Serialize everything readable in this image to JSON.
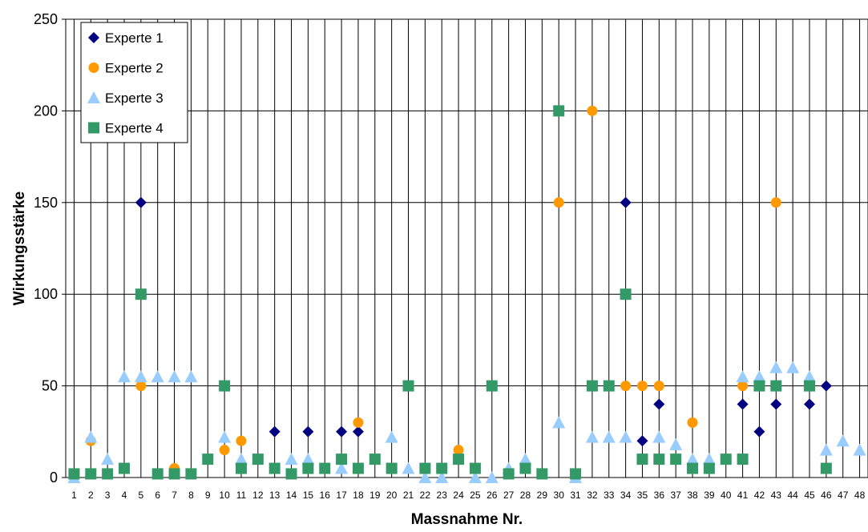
{
  "chart_data": {
    "type": "scatter",
    "xlabel": "Massnahme Nr.",
    "ylabel": "Wirkungsstärke",
    "xlim": [
      0.5,
      48.5
    ],
    "ylim": [
      0,
      250
    ],
    "yticks": [
      0,
      50,
      100,
      150,
      200,
      250
    ],
    "categories": [
      "1",
      "2",
      "3",
      "4",
      "5",
      "6",
      "7",
      "8",
      "9",
      "10",
      "11",
      "12",
      "13",
      "14",
      "15",
      "16",
      "17",
      "18",
      "19",
      "20",
      "21",
      "22",
      "23",
      "24",
      "25",
      "26",
      "27",
      "28",
      "29",
      "30",
      "31",
      "32",
      "33",
      "34",
      "35",
      "36",
      "37",
      "38",
      "39",
      "40",
      "41",
      "42",
      "43",
      "44",
      "45",
      "46",
      "47",
      "48"
    ],
    "grid": "vertical lines at each x, horizontal lines at each y tick",
    "legend_position": "top-left",
    "series": [
      {
        "name": "Experte 1",
        "marker": "diamond",
        "color": "#000080",
        "points": [
          [
            5,
            150
          ],
          [
            13,
            25
          ],
          [
            15,
            25
          ],
          [
            17,
            25
          ],
          [
            18,
            25
          ],
          [
            34,
            150
          ],
          [
            35,
            20
          ],
          [
            36,
            40
          ],
          [
            41,
            40
          ],
          [
            42,
            25
          ],
          [
            43,
            40
          ],
          [
            45,
            40
          ],
          [
            46,
            50
          ]
        ]
      },
      {
        "name": "Experte 2",
        "marker": "circle",
        "color": "#FF9900",
        "points": [
          [
            2,
            20
          ],
          [
            5,
            50
          ],
          [
            7,
            5
          ],
          [
            10,
            15
          ],
          [
            11,
            20
          ],
          [
            18,
            30
          ],
          [
            24,
            15
          ],
          [
            30,
            150
          ],
          [
            32,
            200
          ],
          [
            34,
            50
          ],
          [
            35,
            50
          ],
          [
            36,
            50
          ],
          [
            38,
            30
          ],
          [
            41,
            50
          ],
          [
            43,
            150
          ]
        ]
      },
      {
        "name": "Experte 3",
        "marker": "triangle",
        "color": "#99CCFF",
        "points": [
          [
            1,
            0
          ],
          [
            2,
            22
          ],
          [
            3,
            10
          ],
          [
            4,
            55
          ],
          [
            5,
            55
          ],
          [
            6,
            55
          ],
          [
            7,
            55
          ],
          [
            8,
            55
          ],
          [
            10,
            22
          ],
          [
            11,
            10
          ],
          [
            14,
            10
          ],
          [
            15,
            10
          ],
          [
            17,
            5
          ],
          [
            20,
            22
          ],
          [
            21,
            5
          ],
          [
            22,
            0
          ],
          [
            23,
            0
          ],
          [
            25,
            0
          ],
          [
            26,
            0
          ],
          [
            27,
            5
          ],
          [
            28,
            10
          ],
          [
            30,
            30
          ],
          [
            31,
            0
          ],
          [
            32,
            22
          ],
          [
            33,
            22
          ],
          [
            34,
            22
          ],
          [
            36,
            22
          ],
          [
            37,
            18
          ],
          [
            38,
            10
          ],
          [
            39,
            10
          ],
          [
            41,
            55
          ],
          [
            42,
            55
          ],
          [
            43,
            60
          ],
          [
            44,
            60
          ],
          [
            45,
            55
          ],
          [
            46,
            15
          ],
          [
            47,
            20
          ],
          [
            48,
            15
          ]
        ]
      },
      {
        "name": "Experte 4",
        "marker": "square",
        "color": "#339966",
        "points": [
          [
            1,
            2
          ],
          [
            2,
            2
          ],
          [
            3,
            2
          ],
          [
            4,
            5
          ],
          [
            5,
            100
          ],
          [
            6,
            2
          ],
          [
            7,
            2
          ],
          [
            8,
            2
          ],
          [
            9,
            10
          ],
          [
            10,
            50
          ],
          [
            11,
            5
          ],
          [
            12,
            10
          ],
          [
            13,
            5
          ],
          [
            14,
            2
          ],
          [
            15,
            5
          ],
          [
            16,
            5
          ],
          [
            17,
            10
          ],
          [
            18,
            5
          ],
          [
            19,
            10
          ],
          [
            20,
            5
          ],
          [
            21,
            50
          ],
          [
            22,
            5
          ],
          [
            23,
            5
          ],
          [
            24,
            10
          ],
          [
            25,
            5
          ],
          [
            26,
            50
          ],
          [
            27,
            2
          ],
          [
            28,
            5
          ],
          [
            29,
            2
          ],
          [
            30,
            200
          ],
          [
            31,
            2
          ],
          [
            32,
            50
          ],
          [
            33,
            50
          ],
          [
            34,
            100
          ],
          [
            35,
            10
          ],
          [
            36,
            10
          ],
          [
            37,
            10
          ],
          [
            38,
            5
          ],
          [
            39,
            5
          ],
          [
            40,
            10
          ],
          [
            41,
            10
          ],
          [
            42,
            50
          ],
          [
            43,
            50
          ],
          [
            45,
            50
          ],
          [
            46,
            5
          ]
        ]
      }
    ]
  }
}
